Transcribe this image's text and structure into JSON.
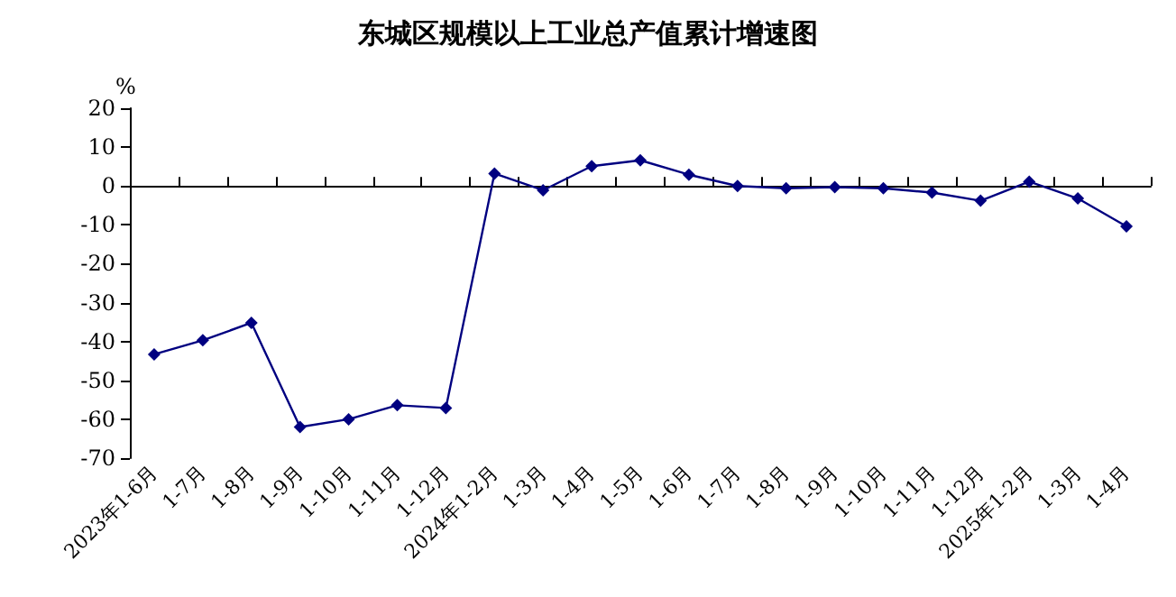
{
  "chart_data": {
    "type": "line",
    "title": "东城区规模以上工业总产值累计增速图",
    "ylabel": "%",
    "categories": [
      "2023年1-6月",
      "1-7月",
      "1-8月",
      "1-9月",
      "1-10月",
      "1-11月",
      "1-12月",
      "2024年1-2月",
      "1-3月",
      "1-4月",
      "1-5月",
      "1-6月",
      "1-7月",
      "1-8月",
      "1-9月",
      "1-10月",
      "1-11月",
      "1-12月",
      "2025年1-2月",
      "1-3月",
      "1-4月"
    ],
    "series": [
      {
        "color": "#000080",
        "values": [
          -43.3,
          -39.7,
          -35.2,
          -62.0,
          -60.0,
          -56.4,
          -57.1,
          3.2,
          -1.1,
          5.1,
          6.6,
          2.9,
          0,
          -0.6,
          -0.3,
          -0.6,
          -1.7,
          -3.8,
          1.1,
          -3.2,
          -10.4
        ]
      }
    ],
    "ylim": [
      -70,
      20
    ],
    "yticks": [
      -70,
      -60,
      -50,
      -40,
      -30,
      -20,
      -10,
      0,
      10,
      20
    ],
    "marker": "diamond",
    "line_style": "solid"
  }
}
